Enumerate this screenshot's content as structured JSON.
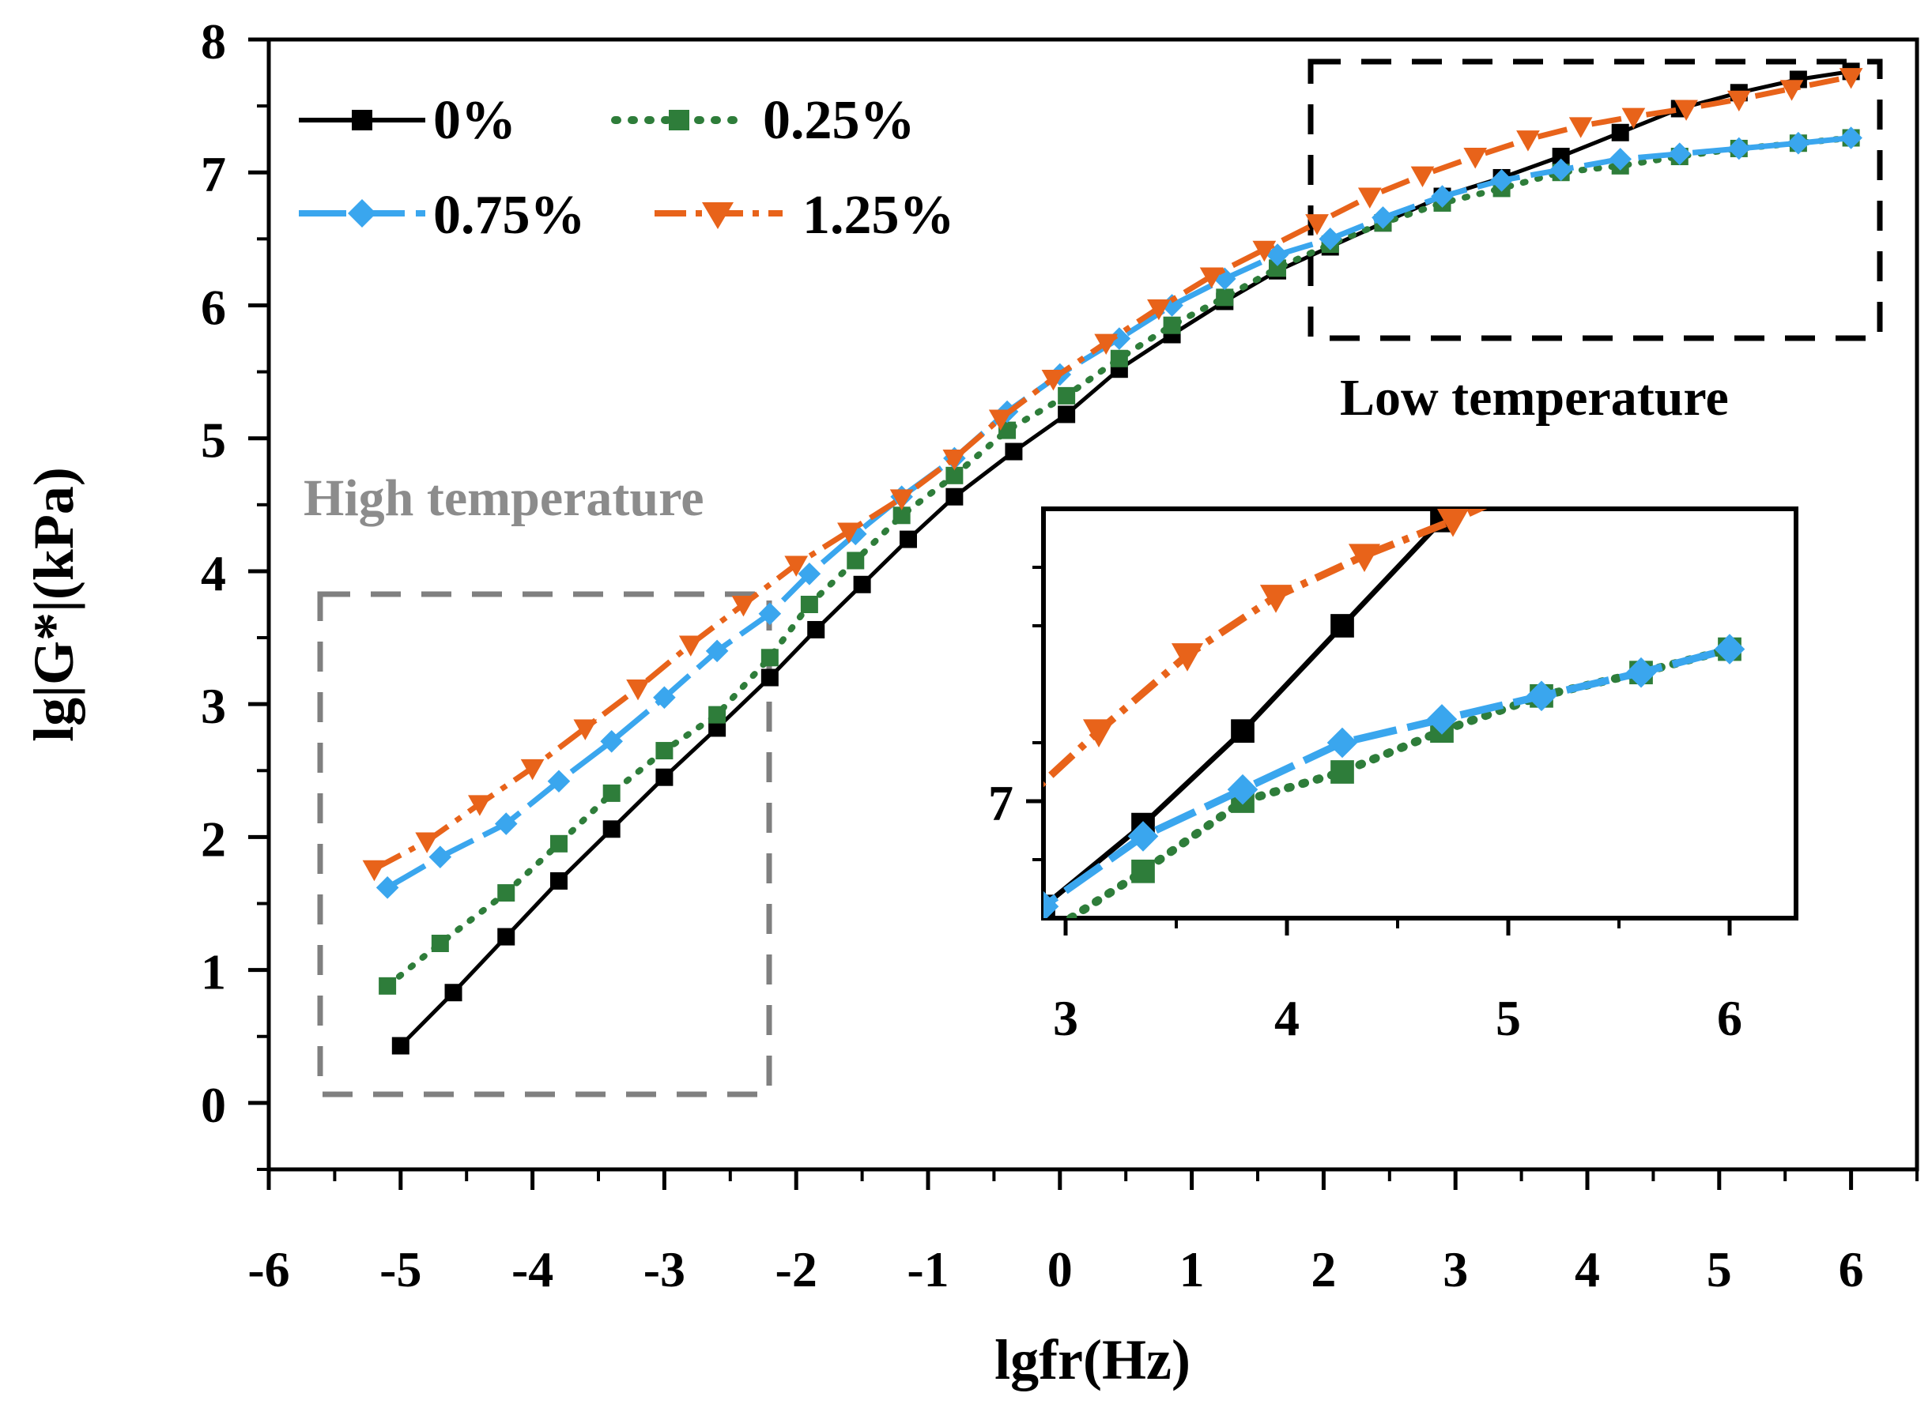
{
  "chart_data": {
    "type": "line",
    "xlabel": "lgfr(Hz)",
    "ylabel": "lg|G*|(kPa)",
    "xlim": [
      -6,
      6.5
    ],
    "ylim": [
      -0.5,
      8
    ],
    "x_ticks": [
      -6,
      -5,
      -4,
      -3,
      -2,
      -1,
      0,
      1,
      2,
      3,
      4,
      5,
      6
    ],
    "y_ticks": [
      0,
      1,
      2,
      3,
      4,
      5,
      6,
      7,
      8
    ],
    "series": [
      {
        "name": "0%",
        "color": "#000000",
        "dash": "solid",
        "marker": "square",
        "x": [
          -5.0,
          -4.6,
          -4.2,
          -3.8,
          -3.4,
          -3.0,
          -2.6,
          -2.2,
          -1.85,
          -1.5,
          -1.15,
          -0.8,
          -0.35,
          0.05,
          0.45,
          0.85,
          1.25,
          1.65,
          2.05,
          2.45,
          2.9,
          3.35,
          3.8,
          4.25,
          4.7,
          5.15,
          5.6,
          6.0
        ],
        "y": [
          0.43,
          0.83,
          1.25,
          1.67,
          2.06,
          2.45,
          2.82,
          3.2,
          3.56,
          3.9,
          4.24,
          4.56,
          4.9,
          5.18,
          5.52,
          5.78,
          6.03,
          6.26,
          6.44,
          6.62,
          6.82,
          6.96,
          7.12,
          7.3,
          7.48,
          7.6,
          7.7,
          7.76
        ]
      },
      {
        "name": "0.25%",
        "color": "#2e7d3a",
        "dash": "dotted",
        "marker": "square",
        "x": [
          -5.1,
          -4.7,
          -4.2,
          -3.8,
          -3.4,
          -3.0,
          -2.6,
          -2.2,
          -1.9,
          -1.55,
          -1.2,
          -0.8,
          -0.4,
          0.05,
          0.45,
          0.85,
          1.25,
          1.65,
          2.05,
          2.45,
          2.9,
          3.35,
          3.8,
          4.25,
          4.7,
          5.15,
          5.6,
          6.0
        ],
        "y": [
          0.88,
          1.2,
          1.58,
          1.95,
          2.33,
          2.65,
          2.92,
          3.35,
          3.75,
          4.08,
          4.42,
          4.72,
          5.06,
          5.32,
          5.6,
          5.85,
          6.06,
          6.28,
          6.46,
          6.62,
          6.77,
          6.88,
          7.0,
          7.05,
          7.12,
          7.18,
          7.22,
          7.26
        ]
      },
      {
        "name": "0.75%",
        "color": "#3aa6ee",
        "dash": "long-dash",
        "marker": "diamond",
        "x": [
          -5.1,
          -4.7,
          -4.2,
          -3.8,
          -3.4,
          -3.0,
          -2.6,
          -2.2,
          -1.9,
          -1.55,
          -1.2,
          -0.8,
          -0.4,
          0.0,
          0.45,
          0.85,
          1.25,
          1.65,
          2.05,
          2.45,
          2.9,
          3.35,
          3.8,
          4.25,
          4.7,
          5.15,
          5.6,
          6.0
        ],
        "y": [
          1.62,
          1.85,
          2.1,
          2.42,
          2.72,
          3.05,
          3.4,
          3.68,
          3.98,
          4.28,
          4.56,
          4.85,
          5.2,
          5.48,
          5.75,
          6.0,
          6.2,
          6.38,
          6.5,
          6.66,
          6.82,
          6.94,
          7.02,
          7.1,
          7.14,
          7.18,
          7.22,
          7.26
        ]
      },
      {
        "name": "1.25%",
        "color": "#e8631a",
        "dash": "dash-dot",
        "marker": "triangle-down",
        "x": [
          -5.2,
          -4.8,
          -4.4,
          -4.0,
          -3.6,
          -3.2,
          -2.8,
          -2.4,
          -2.0,
          -1.6,
          -1.2,
          -0.8,
          -0.45,
          -0.05,
          0.35,
          0.75,
          1.15,
          1.55,
          1.95,
          2.35,
          2.75,
          3.15,
          3.55,
          3.95,
          4.35,
          4.75,
          5.15,
          5.55,
          6.0
        ],
        "y": [
          1.76,
          1.97,
          2.25,
          2.52,
          2.82,
          3.12,
          3.45,
          3.75,
          4.05,
          4.3,
          4.55,
          4.85,
          5.15,
          5.45,
          5.72,
          5.98,
          6.22,
          6.42,
          6.62,
          6.82,
          6.98,
          7.12,
          7.25,
          7.35,
          7.42,
          7.48,
          7.55,
          7.63,
          7.72
        ]
      }
    ],
    "annotations": {
      "high_temperature": "High temperature",
      "low_temperature": "Low temperature"
    },
    "inset": {
      "xlim": [
        2.9,
        6.3
      ],
      "ylim": [
        6.8,
        7.5
      ],
      "x_ticks": [
        3,
        4,
        5,
        6
      ],
      "y_tick_labels": [
        {
          "value": 7,
          "label": "7"
        }
      ],
      "y_minor_ticks": [
        6.9,
        7.1,
        7.3,
        7.4
      ]
    }
  },
  "legend": {
    "labels": [
      "0%",
      "0.25%",
      "0.75%",
      "1.25%"
    ]
  }
}
